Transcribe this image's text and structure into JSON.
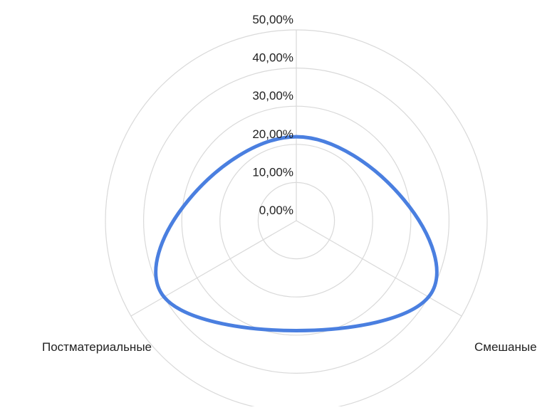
{
  "chart_data": {
    "type": "radar",
    "title": "",
    "categories": [
      "",
      "Смешаные",
      "Постматериальные"
    ],
    "series": [
      {
        "values": [
          22.0,
          40.0,
          40.0
        ],
        "color": "#4a7fe0"
      }
    ],
    "rlim": [
      0,
      50
    ],
    "r_ticks": [
      0,
      10,
      20,
      30,
      40,
      50
    ],
    "r_tick_labels": [
      "0,00%",
      "10,00%",
      "20,00%",
      "30,00%",
      "40,00%",
      "50,00%"
    ],
    "grid": true,
    "grid_shape": "circle",
    "line_style": "curved",
    "legend": "none",
    "colors": {
      "grid": "#d9d9d9",
      "text": "#222222",
      "series": "#4a7fe0"
    }
  }
}
